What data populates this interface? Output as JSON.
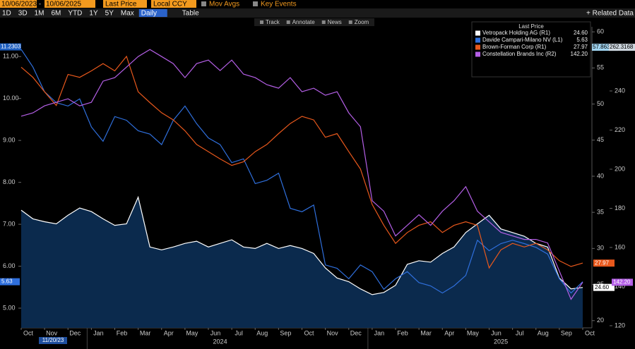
{
  "toolbar": {
    "start_date": "10/06/2023",
    "separator": "-",
    "end_date": "10/06/2025",
    "field": "Last Price",
    "currency": "Local CCY",
    "mov_avgs": "Mov Avgs",
    "key_events": "Key Events",
    "periods": [
      "1D",
      "3D",
      "1M",
      "6M",
      "YTD",
      "1Y",
      "5Y",
      "Max"
    ],
    "frequency": "Daily",
    "table": "Table",
    "related": "+ Related Data",
    "tools": [
      "Track",
      "Annotate",
      "News",
      "Zoom"
    ]
  },
  "chart_data": {
    "type": "line",
    "legend_title": "Last Price",
    "categories": [
      "Oct",
      null,
      "Nov",
      null,
      "Dec",
      null,
      "Jan",
      null,
      "Feb",
      null,
      "Mar",
      null,
      "Apr",
      null,
      "May",
      null,
      "Jun",
      null,
      "Jul",
      null,
      "Aug",
      null,
      "Sep",
      null,
      "Oct",
      null,
      "Nov",
      null,
      "Dec",
      null,
      "Jan",
      null,
      "Feb",
      null,
      "Mar",
      null,
      "Apr",
      null,
      "May",
      null,
      "Jun",
      null,
      "Jul",
      null,
      "Aug",
      null,
      "Sep",
      null,
      "Oct"
    ],
    "year_labels": [
      "2024",
      "2025"
    ],
    "ylim": [
      4.53,
      11.71
    ],
    "yticks": [
      {
        "value": 5,
        "label": "5.00"
      },
      {
        "value": 6,
        "label": "6.00"
      },
      {
        "value": 7,
        "label": "7.00"
      },
      {
        "value": 8,
        "label": "8.00"
      },
      {
        "value": 9,
        "label": "9.00"
      },
      {
        "value": 10,
        "label": "10.00"
      },
      {
        "value": 11,
        "label": "11.00"
      }
    ],
    "y2lim": [
      19.0,
      60.7
    ],
    "y2ticks": [
      20,
      25,
      30,
      35,
      40,
      45,
      50,
      55,
      60
    ],
    "y3lim": [
      118.9,
      272.8
    ],
    "y3ticks": [
      120,
      140,
      160,
      180,
      200,
      220,
      240
    ],
    "grid": false,
    "crosshair": {
      "label": "11/20/23",
      "values": [
        11.2303,
        57.8631,
        262.3168
      ]
    },
    "series": [
      {
        "name": "Vetropack Holding AG (R1)",
        "color": "#ffffff",
        "area_color": "#0b2a4d",
        "axis": "y2",
        "last": {
          "value": 24.6,
          "label": "24.60"
        },
        "values": [
          35.3,
          34.1,
          33.7,
          33.4,
          34.6,
          35.6,
          35.1,
          34.1,
          33.2,
          33.4,
          37.1,
          30.2,
          29.8,
          30.2,
          30.7,
          31.0,
          30.2,
          30.7,
          31.2,
          30.2,
          30.0,
          30.7,
          30.0,
          30.4,
          30.0,
          29.3,
          27.3,
          25.9,
          25.4,
          24.4,
          23.6,
          23.9,
          24.9,
          27.8,
          28.3,
          28.1,
          29.3,
          30.2,
          32.2,
          33.4,
          34.6,
          32.7,
          32.2,
          31.7,
          30.7,
          30.2,
          25.9,
          24.4,
          24.6
        ]
      },
      {
        "name": "Davide Campari-Milano NV (L1)",
        "color": "#2f6fdc",
        "axis": "y",
        "last": {
          "value": 5.63,
          "label": "5.63"
        },
        "values": [
          11.17,
          10.75,
          10.16,
          9.9,
          9.82,
          9.99,
          9.32,
          8.98,
          9.57,
          9.48,
          9.23,
          9.15,
          8.9,
          9.48,
          9.82,
          9.4,
          9.06,
          8.9,
          8.47,
          8.56,
          7.97,
          8.05,
          8.22,
          7.38,
          7.3,
          7.46,
          6.03,
          5.95,
          5.7,
          6.03,
          5.87,
          5.45,
          5.7,
          5.87,
          5.61,
          5.53,
          5.36,
          5.53,
          5.78,
          6.62,
          6.37,
          6.54,
          6.62,
          6.54,
          6.45,
          6.29,
          5.7,
          5.36,
          5.63
        ]
      },
      {
        "name": "Brown-Forman Corp  (R1)",
        "color": "#e8581c",
        "axis": "y2",
        "last": {
          "value": 27.97,
          "label": "27.97"
        },
        "values": [
          55.1,
          53.7,
          51.7,
          49.8,
          54.1,
          53.7,
          54.6,
          55.6,
          54.6,
          56.6,
          51.7,
          50.2,
          48.8,
          47.8,
          46.3,
          44.4,
          43.4,
          42.4,
          41.5,
          42.0,
          43.4,
          44.4,
          45.9,
          47.3,
          48.3,
          47.8,
          45.4,
          45.9,
          43.4,
          41.0,
          36.1,
          33.2,
          30.7,
          32.2,
          33.2,
          33.7,
          32.2,
          33.2,
          33.7,
          33.2,
          27.3,
          29.8,
          30.7,
          30.2,
          30.7,
          29.8,
          28.3,
          27.5,
          27.97
        ]
      },
      {
        "name": "Constellation Brands Inc  (R2)",
        "color": "#b45fe6",
        "axis": "y3",
        "last": {
          "value": 142.2,
          "label": "142.20"
        },
        "values": [
          227.1,
          228.8,
          232.4,
          234.2,
          236.0,
          232.4,
          234.2,
          245.0,
          246.8,
          252.2,
          257.6,
          261.2,
          257.6,
          254.0,
          246.8,
          254.0,
          255.8,
          250.4,
          255.8,
          248.6,
          246.8,
          243.2,
          241.4,
          246.8,
          239.6,
          241.4,
          237.8,
          239.6,
          228.8,
          221.7,
          183.9,
          178.5,
          165.9,
          171.3,
          176.7,
          171.3,
          178.5,
          183.9,
          191.1,
          178.5,
          173.1,
          167.7,
          165.9,
          164.1,
          164.1,
          162.3,
          147.9,
          133.5,
          142.2
        ]
      }
    ]
  }
}
